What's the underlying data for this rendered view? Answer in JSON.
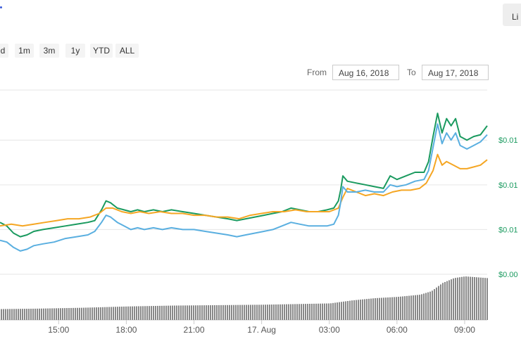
{
  "header": {
    "scale_button_label": "Li"
  },
  "zoom_buttons": [
    "d",
    "1m",
    "3m",
    "1y",
    "YTD",
    "ALL"
  ],
  "range": {
    "from_label": "From",
    "from_value": "Aug 16, 2018",
    "to_label": "To",
    "to_value": "Aug 17, 2018"
  },
  "colors": {
    "green": "#1a9a5f",
    "orange": "#f5a623",
    "blue": "#5aafe0",
    "volume": "#888888",
    "right_axis_text": "#1a9a5f"
  },
  "chart_data": {
    "type": "line",
    "x_tick_labels": [
      "15:00",
      "18:00",
      "21:00",
      "17. Aug",
      "03:00",
      "06:00",
      "09:00"
    ],
    "x_ticks_hours": [
      15,
      18,
      21,
      24,
      27,
      30,
      33
    ],
    "x_range_hours": [
      12.4,
      34.0
    ],
    "right_axis_labels": [
      "$0.01",
      "$0.01",
      "$0.01",
      "$0.00"
    ],
    "right_axis_levels": [
      1.0,
      0.75,
      0.5,
      0.25
    ],
    "y_range": [
      0.25,
      1.28
    ],
    "grid": true,
    "series": [
      {
        "color_key": "green",
        "points": [
          [
            12.4,
            0.54
          ],
          [
            12.7,
            0.52
          ],
          [
            13.0,
            0.48
          ],
          [
            13.3,
            0.46
          ],
          [
            13.6,
            0.47
          ],
          [
            13.9,
            0.49
          ],
          [
            14.3,
            0.5
          ],
          [
            14.8,
            0.51
          ],
          [
            15.3,
            0.52
          ],
          [
            15.8,
            0.53
          ],
          [
            16.3,
            0.54
          ],
          [
            16.6,
            0.55
          ],
          [
            16.9,
            0.61
          ],
          [
            17.1,
            0.66
          ],
          [
            17.3,
            0.65
          ],
          [
            17.6,
            0.62
          ],
          [
            17.9,
            0.61
          ],
          [
            18.2,
            0.6
          ],
          [
            18.5,
            0.61
          ],
          [
            18.8,
            0.6
          ],
          [
            19.2,
            0.61
          ],
          [
            19.6,
            0.6
          ],
          [
            20.0,
            0.61
          ],
          [
            20.5,
            0.6
          ],
          [
            21.0,
            0.59
          ],
          [
            21.5,
            0.58
          ],
          [
            22.0,
            0.57
          ],
          [
            22.5,
            0.56
          ],
          [
            22.9,
            0.55
          ],
          [
            23.3,
            0.56
          ],
          [
            23.7,
            0.57
          ],
          [
            24.1,
            0.58
          ],
          [
            24.5,
            0.59
          ],
          [
            24.9,
            0.6
          ],
          [
            25.3,
            0.62
          ],
          [
            25.7,
            0.61
          ],
          [
            26.1,
            0.6
          ],
          [
            26.5,
            0.6
          ],
          [
            26.9,
            0.61
          ],
          [
            27.2,
            0.62
          ],
          [
            27.4,
            0.66
          ],
          [
            27.5,
            0.72
          ],
          [
            27.6,
            0.8
          ],
          [
            27.8,
            0.77
          ],
          [
            28.2,
            0.76
          ],
          [
            28.6,
            0.75
          ],
          [
            29.0,
            0.74
          ],
          [
            29.4,
            0.73
          ],
          [
            29.7,
            0.8
          ],
          [
            30.0,
            0.78
          ],
          [
            30.4,
            0.8
          ],
          [
            30.8,
            0.82
          ],
          [
            31.2,
            0.82
          ],
          [
            31.4,
            0.88
          ],
          [
            31.6,
            1.02
          ],
          [
            31.8,
            1.15
          ],
          [
            32.0,
            1.04
          ],
          [
            32.2,
            1.12
          ],
          [
            32.4,
            1.08
          ],
          [
            32.6,
            1.12
          ],
          [
            32.8,
            1.02
          ],
          [
            33.1,
            1.0
          ],
          [
            33.4,
            1.02
          ],
          [
            33.7,
            1.03
          ],
          [
            34.0,
            1.08
          ]
        ]
      },
      {
        "color_key": "orange",
        "points": [
          [
            12.4,
            0.52
          ],
          [
            12.9,
            0.53
          ],
          [
            13.4,
            0.52
          ],
          [
            13.9,
            0.53
          ],
          [
            14.4,
            0.54
          ],
          [
            14.9,
            0.55
          ],
          [
            15.4,
            0.56
          ],
          [
            15.9,
            0.56
          ],
          [
            16.4,
            0.57
          ],
          [
            16.8,
            0.59
          ],
          [
            17.1,
            0.62
          ],
          [
            17.4,
            0.62
          ],
          [
            17.8,
            0.6
          ],
          [
            18.2,
            0.59
          ],
          [
            18.6,
            0.6
          ],
          [
            19.0,
            0.59
          ],
          [
            19.5,
            0.6
          ],
          [
            20.0,
            0.59
          ],
          [
            20.5,
            0.59
          ],
          [
            21.0,
            0.58
          ],
          [
            21.5,
            0.58
          ],
          [
            22.0,
            0.57
          ],
          [
            22.5,
            0.57
          ],
          [
            23.0,
            0.56
          ],
          [
            23.5,
            0.58
          ],
          [
            24.0,
            0.59
          ],
          [
            24.5,
            0.6
          ],
          [
            25.0,
            0.6
          ],
          [
            25.5,
            0.61
          ],
          [
            26.0,
            0.6
          ],
          [
            26.5,
            0.6
          ],
          [
            27.0,
            0.6
          ],
          [
            27.4,
            0.62
          ],
          [
            27.6,
            0.68
          ],
          [
            27.8,
            0.73
          ],
          [
            28.2,
            0.71
          ],
          [
            28.6,
            0.69
          ],
          [
            29.0,
            0.7
          ],
          [
            29.4,
            0.69
          ],
          [
            29.8,
            0.71
          ],
          [
            30.2,
            0.72
          ],
          [
            30.6,
            0.72
          ],
          [
            31.0,
            0.73
          ],
          [
            31.3,
            0.76
          ],
          [
            31.6,
            0.83
          ],
          [
            31.8,
            0.92
          ],
          [
            32.0,
            0.86
          ],
          [
            32.2,
            0.88
          ],
          [
            32.5,
            0.86
          ],
          [
            32.8,
            0.84
          ],
          [
            33.1,
            0.84
          ],
          [
            33.4,
            0.85
          ],
          [
            33.7,
            0.86
          ],
          [
            34.0,
            0.89
          ]
        ]
      },
      {
        "color_key": "blue",
        "points": [
          [
            12.4,
            0.44
          ],
          [
            12.7,
            0.43
          ],
          [
            13.0,
            0.4
          ],
          [
            13.3,
            0.38
          ],
          [
            13.6,
            0.39
          ],
          [
            13.9,
            0.41
          ],
          [
            14.3,
            0.42
          ],
          [
            14.8,
            0.43
          ],
          [
            15.3,
            0.45
          ],
          [
            15.8,
            0.46
          ],
          [
            16.3,
            0.47
          ],
          [
            16.6,
            0.49
          ],
          [
            16.9,
            0.54
          ],
          [
            17.1,
            0.58
          ],
          [
            17.3,
            0.57
          ],
          [
            17.6,
            0.54
          ],
          [
            17.9,
            0.52
          ],
          [
            18.2,
            0.5
          ],
          [
            18.5,
            0.51
          ],
          [
            18.8,
            0.5
          ],
          [
            19.2,
            0.51
          ],
          [
            19.6,
            0.5
          ],
          [
            20.0,
            0.51
          ],
          [
            20.5,
            0.5
          ],
          [
            21.0,
            0.5
          ],
          [
            21.5,
            0.49
          ],
          [
            22.0,
            0.48
          ],
          [
            22.5,
            0.47
          ],
          [
            22.9,
            0.46
          ],
          [
            23.3,
            0.47
          ],
          [
            23.7,
            0.48
          ],
          [
            24.1,
            0.49
          ],
          [
            24.5,
            0.5
          ],
          [
            24.9,
            0.52
          ],
          [
            25.3,
            0.54
          ],
          [
            25.7,
            0.53
          ],
          [
            26.1,
            0.52
          ],
          [
            26.5,
            0.52
          ],
          [
            26.9,
            0.52
          ],
          [
            27.2,
            0.53
          ],
          [
            27.4,
            0.58
          ],
          [
            27.5,
            0.65
          ],
          [
            27.6,
            0.74
          ],
          [
            27.8,
            0.71
          ],
          [
            28.2,
            0.71
          ],
          [
            28.6,
            0.72
          ],
          [
            29.0,
            0.71
          ],
          [
            29.4,
            0.71
          ],
          [
            29.7,
            0.75
          ],
          [
            30.0,
            0.74
          ],
          [
            30.4,
            0.75
          ],
          [
            30.8,
            0.77
          ],
          [
            31.2,
            0.78
          ],
          [
            31.4,
            0.83
          ],
          [
            31.6,
            0.96
          ],
          [
            31.8,
            1.09
          ],
          [
            32.0,
            0.98
          ],
          [
            32.2,
            1.04
          ],
          [
            32.4,
            1.0
          ],
          [
            32.6,
            1.04
          ],
          [
            32.8,
            0.97
          ],
          [
            33.1,
            0.95
          ],
          [
            33.4,
            0.97
          ],
          [
            33.7,
            0.99
          ],
          [
            34.0,
            1.03
          ]
        ]
      }
    ],
    "volume": {
      "color_key": "volume",
      "points": [
        [
          12.4,
          0.25
        ],
        [
          14.0,
          0.26
        ],
        [
          16.0,
          0.28
        ],
        [
          18.0,
          0.31
        ],
        [
          20.0,
          0.33
        ],
        [
          22.0,
          0.34
        ],
        [
          24.0,
          0.35
        ],
        [
          26.0,
          0.37
        ],
        [
          27.0,
          0.38
        ],
        [
          28.0,
          0.45
        ],
        [
          29.0,
          0.5
        ],
        [
          30.0,
          0.53
        ],
        [
          31.0,
          0.58
        ],
        [
          31.5,
          0.66
        ],
        [
          32.0,
          0.85
        ],
        [
          32.5,
          0.96
        ],
        [
          33.0,
          1.0
        ],
        [
          33.5,
          0.98
        ],
        [
          34.0,
          0.96
        ]
      ],
      "y_range": [
        0,
        1
      ]
    }
  }
}
